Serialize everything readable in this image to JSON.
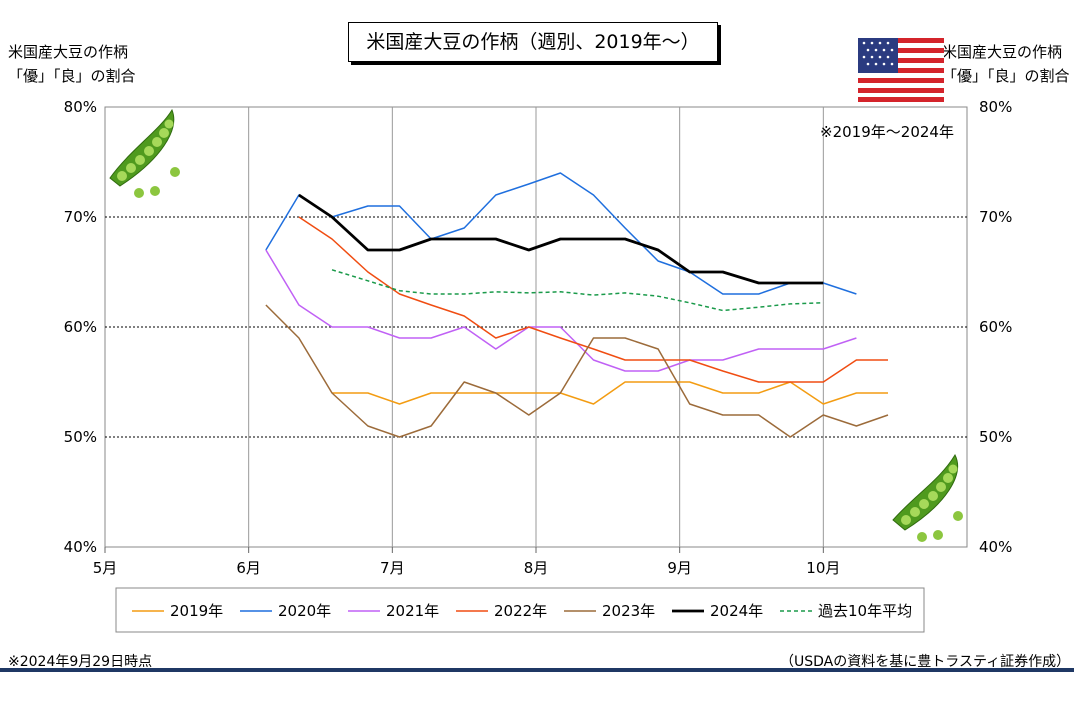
{
  "chart_data": {
    "type": "line",
    "title": "米国産大豆の作柄（週別、2019年～）",
    "ylabel_left": [
      "米国産大豆の作柄",
      "「優」「良」の割合"
    ],
    "ylabel_right": [
      "米国産大豆の作柄",
      "「優」「良」の割合"
    ],
    "xlim": [
      5,
      11
    ],
    "ylim": [
      40,
      80
    ],
    "x_ticks": [
      {
        "value": 5,
        "label": "5月"
      },
      {
        "value": 6,
        "label": "6月"
      },
      {
        "value": 7,
        "label": "7月"
      },
      {
        "value": 8,
        "label": "8月"
      },
      {
        "value": 9,
        "label": "9月"
      },
      {
        "value": 10,
        "label": "10月"
      }
    ],
    "y_ticks": [
      {
        "value": 40,
        "label": "40%"
      },
      {
        "value": 50,
        "label": "50%"
      },
      {
        "value": 60,
        "label": "60%"
      },
      {
        "value": 70,
        "label": "70%"
      },
      {
        "value": 80,
        "label": "80%"
      }
    ],
    "gridlines": "major",
    "legend_position": "bottom",
    "annotation": "※2019年～2024年",
    "series": [
      {
        "name": "2019年",
        "color": "#f39c12",
        "width": 1.5,
        "dash": "",
        "x": [
          6.58,
          6.83,
          7.05,
          7.27,
          7.5,
          7.72,
          7.95,
          8.17,
          8.4,
          8.62,
          8.85,
          9.07,
          9.3,
          9.55,
          9.77,
          10.0,
          10.23,
          10.45
        ],
        "y": [
          54,
          54,
          53,
          54,
          54,
          54,
          54,
          54,
          53,
          55,
          55,
          55,
          54,
          54,
          55,
          53,
          54,
          54
        ]
      },
      {
        "name": "2020年",
        "color": "#1f6fde",
        "width": 1.5,
        "dash": "",
        "x": [
          6.12,
          6.35,
          6.58,
          6.83,
          7.05,
          7.27,
          7.5,
          7.72,
          7.95,
          8.17,
          8.4,
          8.62,
          8.85,
          9.07,
          9.3,
          9.55,
          9.77,
          10.0,
          10.23
        ],
        "y": [
          67,
          72,
          70,
          71,
          71,
          68,
          69,
          72,
          73,
          74,
          72,
          69,
          66,
          65,
          63,
          63,
          64,
          64,
          63
        ]
      },
      {
        "name": "2021年",
        "color": "#c061f5",
        "width": 1.5,
        "dash": "",
        "x": [
          6.12,
          6.35,
          6.58,
          6.83,
          7.05,
          7.27,
          7.5,
          7.72,
          7.95,
          8.17,
          8.4,
          8.62,
          8.85,
          9.07,
          9.3,
          9.55,
          9.77,
          10.0,
          10.23
        ],
        "y": [
          67,
          62,
          60,
          60,
          59,
          59,
          60,
          58,
          60,
          60,
          57,
          56,
          56,
          57,
          57,
          58,
          58,
          58,
          59
        ]
      },
      {
        "name": "2022年",
        "color": "#f04d12",
        "width": 1.5,
        "dash": "",
        "x": [
          6.35,
          6.58,
          6.83,
          7.05,
          7.27,
          7.5,
          7.72,
          7.95,
          8.17,
          8.4,
          8.62,
          8.85,
          9.07,
          9.3,
          9.55,
          9.77,
          10.0,
          10.23,
          10.45
        ],
        "y": [
          70,
          68,
          65,
          63,
          62,
          61,
          59,
          60,
          59,
          58,
          57,
          57,
          57,
          56,
          55,
          55,
          55,
          57,
          57
        ]
      },
      {
        "name": "2023年",
        "color": "#9c6b3a",
        "width": 1.5,
        "dash": "",
        "x": [
          6.12,
          6.35,
          6.58,
          6.83,
          7.05,
          7.27,
          7.5,
          7.72,
          7.95,
          8.17,
          8.4,
          8.62,
          8.85,
          9.07,
          9.3,
          9.55,
          9.77,
          10.0,
          10.23,
          10.45
        ],
        "y": [
          62,
          59,
          54,
          51,
          50,
          51,
          55,
          54,
          52,
          54,
          59,
          59,
          58,
          53,
          52,
          52,
          50,
          52,
          51,
          52
        ]
      },
      {
        "name": "2024年",
        "color": "#000000",
        "width": 2.8,
        "dash": "",
        "x": [
          6.35,
          6.58,
          6.83,
          7.05,
          7.27,
          7.5,
          7.72,
          7.95,
          8.17,
          8.4,
          8.62,
          8.85,
          9.07,
          9.3,
          9.55,
          9.77,
          10.0
        ],
        "y": [
          72,
          70,
          67,
          67,
          68,
          68,
          68,
          67,
          68,
          68,
          68,
          67,
          65,
          65,
          64,
          64,
          64
        ]
      },
      {
        "name": "過去10年平均",
        "color": "#1a9a4a",
        "width": 1.5,
        "dash": "4,3",
        "x": [
          6.58,
          6.83,
          7.05,
          7.27,
          7.5,
          7.72,
          7.95,
          8.17,
          8.4,
          8.62,
          8.85,
          9.07,
          9.3,
          9.55,
          9.77,
          10.0
        ],
        "y": [
          65.2,
          64.2,
          63.3,
          63.0,
          63.0,
          63.2,
          63.1,
          63.2,
          62.9,
          63.1,
          62.8,
          62.2,
          61.5,
          61.8,
          62.1,
          62.2
        ]
      }
    ]
  },
  "footer": {
    "left": "※2024年9月29日時点",
    "right": "（USDAの資料を基に豊トラスティ証券作成）"
  },
  "icons": {
    "peas_top_left": "peas-pod-icon",
    "peas_bottom_right": "peas-pod-icon",
    "flag": "us-flag-icon"
  }
}
